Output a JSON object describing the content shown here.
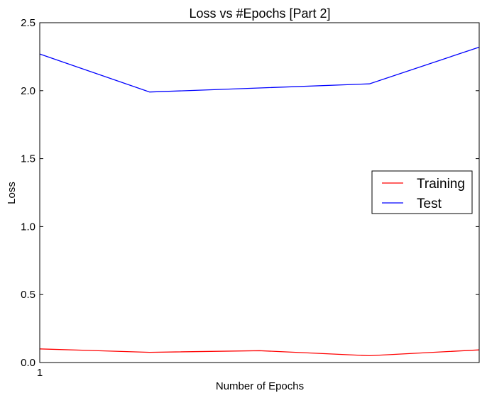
{
  "chart_data": {
    "type": "line",
    "title": "Loss vs #Epochs [Part 2]",
    "xlabel": "Number of Epochs",
    "ylabel": "Loss",
    "x": [
      1,
      2,
      3,
      4,
      5
    ],
    "x_tick_labels": [
      {
        "x": 1,
        "label": "1"
      }
    ],
    "xlim": [
      1,
      5
    ],
    "ylim": [
      0.0,
      2.5
    ],
    "y_ticks": [
      0.0,
      0.5,
      1.0,
      1.5,
      2.0,
      2.5
    ],
    "y_tick_labels": [
      "0.0",
      "0.5",
      "1.0",
      "1.5",
      "2.0",
      "2.5"
    ],
    "grid": false,
    "legend_position": "center-right",
    "series": [
      {
        "name": "Training",
        "color": "#ff0000",
        "values": [
          0.1,
          0.075,
          0.087,
          0.05,
          0.093
        ]
      },
      {
        "name": "Test",
        "color": "#0000ff",
        "values": [
          2.27,
          1.99,
          2.02,
          2.05,
          2.32
        ]
      }
    ]
  }
}
